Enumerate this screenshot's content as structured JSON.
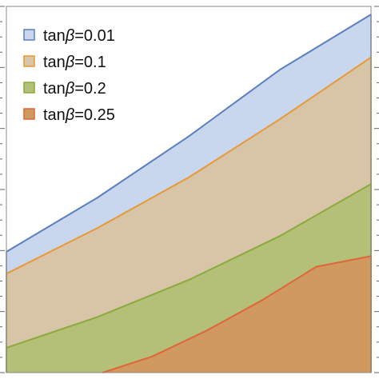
{
  "chart_data": {
    "type": "area",
    "title": "",
    "xlabel": "",
    "ylabel": "",
    "xlim": [
      0,
      1
    ],
    "ylim": [
      0,
      1
    ],
    "grid": false,
    "legend_position": "top-left",
    "series": [
      {
        "name_prefix": "tan",
        "name_symbol": "β",
        "name_suffix": "=0.01",
        "color": "#5b7fbd",
        "fill": "#c9d7ee",
        "x": [
          0,
          0.25,
          0.5,
          0.75,
          1
        ],
        "y": [
          0.33,
          0.478,
          0.645,
          0.827,
          0.978
        ]
      },
      {
        "name_prefix": "tan",
        "name_symbol": "β",
        "name_suffix": "=0.1",
        "color": "#e69a35",
        "fill": "#d8c4a6",
        "x": [
          0,
          0.25,
          0.5,
          0.75,
          1
        ],
        "y": [
          0.27,
          0.395,
          0.533,
          0.692,
          0.861
        ]
      },
      {
        "name_prefix": "tan",
        "name_symbol": "β",
        "name_suffix": "=0.2",
        "color": "#8aab3c",
        "fill": "#b4bf78",
        "x": [
          0,
          0.25,
          0.5,
          0.75,
          1
        ],
        "y": [
          0.068,
          0.152,
          0.253,
          0.373,
          0.515
        ]
      },
      {
        "name_prefix": "tan",
        "name_symbol": "β",
        "name_suffix": "=0.25",
        "color": "#e0653a",
        "fill": "#cf9960",
        "x": [
          0.264,
          0.4,
          0.55,
          0.7,
          0.85,
          1
        ],
        "y": [
          0,
          0.044,
          0.115,
          0.197,
          0.289,
          0.318
        ]
      }
    ]
  }
}
